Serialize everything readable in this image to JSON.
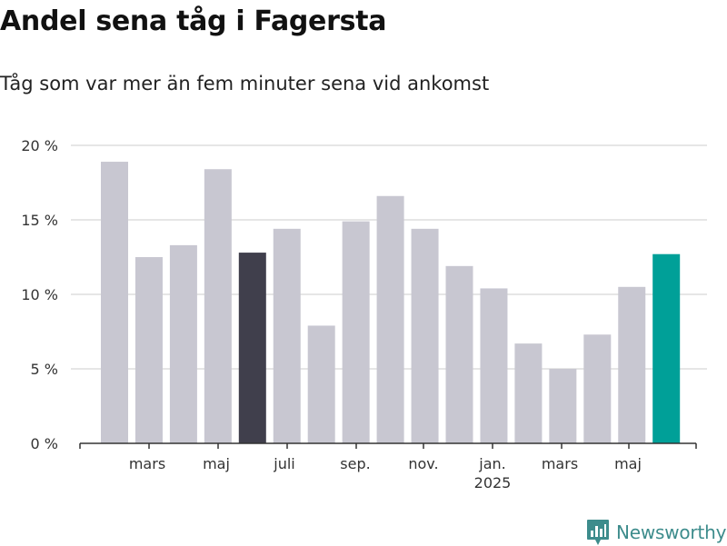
{
  "header": {
    "title": "Andel sena tåg i Fagersta",
    "subtitle": "Tåg som var mer än fem minuter sena vid ankomst"
  },
  "brand": {
    "name": "Newsworthy"
  },
  "colors": {
    "bar_default": "#c8c7d1",
    "bar_highlight_dark": "#403f4c",
    "bar_highlight_current": "#00a098",
    "grid": "#dddddd",
    "axis": "#333333",
    "brand": "#3d8c8c"
  },
  "chart_data": {
    "type": "bar",
    "title": "Andel sena tåg i Fagersta",
    "ylim": [
      0,
      20
    ],
    "y_ticks": [
      {
        "value": 0,
        "label": "0 %"
      },
      {
        "value": 5,
        "label": "5 %"
      },
      {
        "value": 10,
        "label": "10 %"
      },
      {
        "value": 15,
        "label": "15 %"
      },
      {
        "value": 20,
        "label": "20 %"
      }
    ],
    "x_tick_labels": [
      "mars",
      "maj",
      "juli",
      "sep.",
      "nov.",
      "jan.",
      "mars",
      "maj"
    ],
    "x_year_label": "2025",
    "grid": true,
    "values": [
      18.9,
      12.5,
      13.3,
      18.4,
      12.8,
      14.4,
      7.9,
      14.9,
      16.6,
      14.4,
      11.9,
      10.4,
      6.7,
      5.0,
      7.3,
      10.5,
      12.7
    ],
    "highlight": [
      "none",
      "none",
      "none",
      "none",
      "dark",
      "none",
      "none",
      "none",
      "none",
      "none",
      "none",
      "none",
      "none",
      "none",
      "none",
      "none",
      "current"
    ]
  }
}
